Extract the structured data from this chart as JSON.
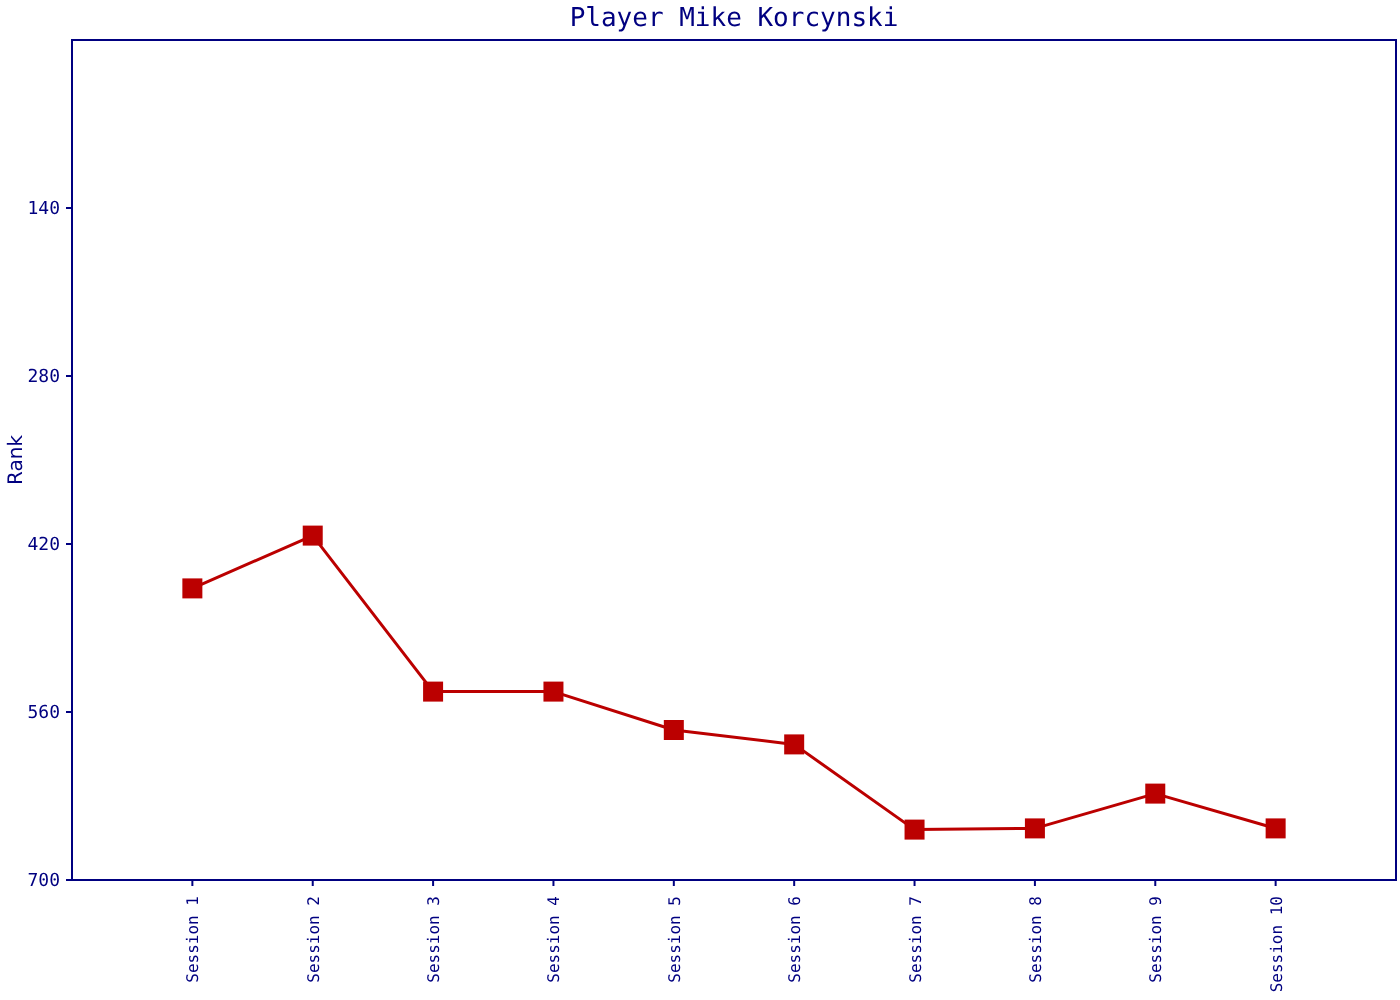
{
  "chart_data": {
    "type": "line",
    "title": "Player Mike Korcynski",
    "ylabel": "Rank",
    "categories": [
      "Session 1",
      "Session 2",
      "Session 3",
      "Session 4",
      "Session 5",
      "Session 6",
      "Session 7",
      "Session 8",
      "Session 9",
      "Session 10"
    ],
    "series": [
      {
        "color": "#bb0000",
        "values": [
          457,
          413,
          543,
          543,
          575,
          587,
          658,
          657,
          628,
          657
        ]
      }
    ],
    "ylim": [
      700,
      0
    ],
    "yticks": [
      140,
      280,
      420,
      560,
      700
    ],
    "marker": "square",
    "line_style": "solid"
  }
}
